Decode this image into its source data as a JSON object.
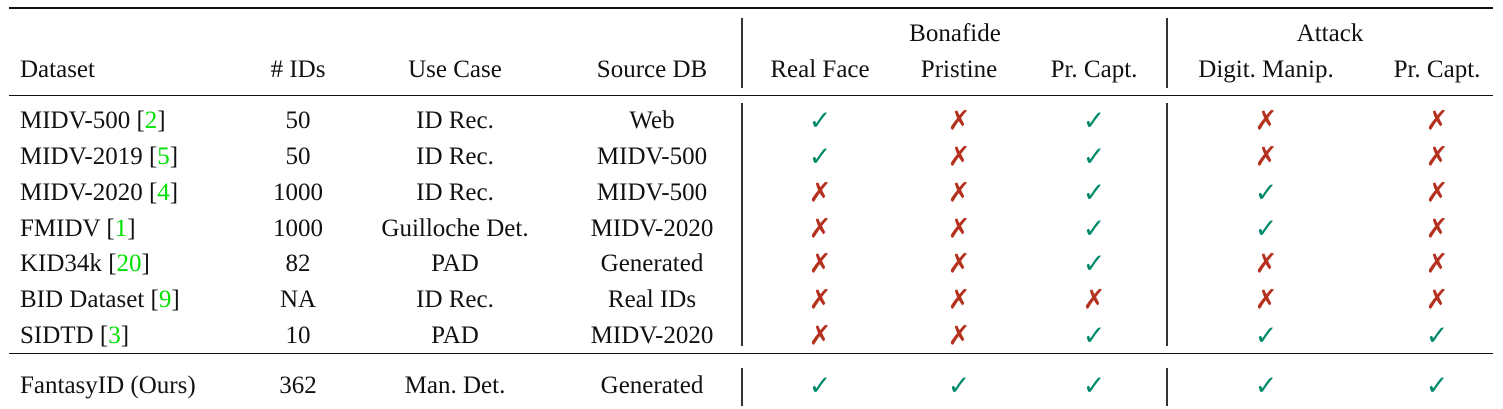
{
  "colors": {
    "check": "#008a6a",
    "cross": "#b5311f",
    "citation": "#00e000"
  },
  "header": {
    "groups": {
      "bonafide": "Bonafide",
      "attack": "Attack"
    },
    "columns": [
      "Dataset",
      "# IDs",
      "Use Case",
      "Source DB",
      "Real Face",
      "Pristine",
      "Pr. Capt.",
      "Digit. Manip.",
      "Pr. Capt."
    ]
  },
  "icons": {
    "check": "✓",
    "cross": "✗"
  },
  "rows": [
    {
      "name": "MIDV-500",
      "ref": "2",
      "ids": "50",
      "use_case": "ID Rec.",
      "source": "Web",
      "marks": [
        "check",
        "cross",
        "check",
        "cross",
        "cross"
      ]
    },
    {
      "name": "MIDV-2019",
      "ref": "5",
      "ids": "50",
      "use_case": "ID Rec.",
      "source": "MIDV-500",
      "marks": [
        "check",
        "cross",
        "check",
        "cross",
        "cross"
      ]
    },
    {
      "name": "MIDV-2020",
      "ref": "4",
      "ids": "1000",
      "use_case": "ID Rec.",
      "source": "MIDV-500",
      "marks": [
        "cross",
        "cross",
        "check",
        "check",
        "cross"
      ]
    },
    {
      "name": "FMIDV",
      "ref": "1",
      "ids": "1000",
      "use_case": "Guilloche Det.",
      "source": "MIDV-2020",
      "marks": [
        "cross",
        "cross",
        "check",
        "check",
        "cross"
      ]
    },
    {
      "name": "KID34k",
      "ref": "20",
      "ids": "82",
      "use_case": "PAD",
      "source": "Generated",
      "marks": [
        "cross",
        "cross",
        "check",
        "cross",
        "cross"
      ]
    },
    {
      "name": "BID Dataset",
      "ref": "9",
      "ids": "NA",
      "use_case": "ID Rec.",
      "source": "Real IDs",
      "marks": [
        "cross",
        "cross",
        "cross",
        "cross",
        "cross"
      ]
    },
    {
      "name": "SIDTD",
      "ref": "3",
      "ids": "10",
      "use_case": "PAD",
      "source": "MIDV-2020",
      "marks": [
        "cross",
        "cross",
        "check",
        "check",
        "check"
      ]
    }
  ],
  "ours": {
    "name": "FantasyID (Ours)",
    "ids": "362",
    "use_case": "Man. Det.",
    "source": "Generated",
    "marks": [
      "check",
      "check",
      "check",
      "check",
      "check"
    ]
  }
}
